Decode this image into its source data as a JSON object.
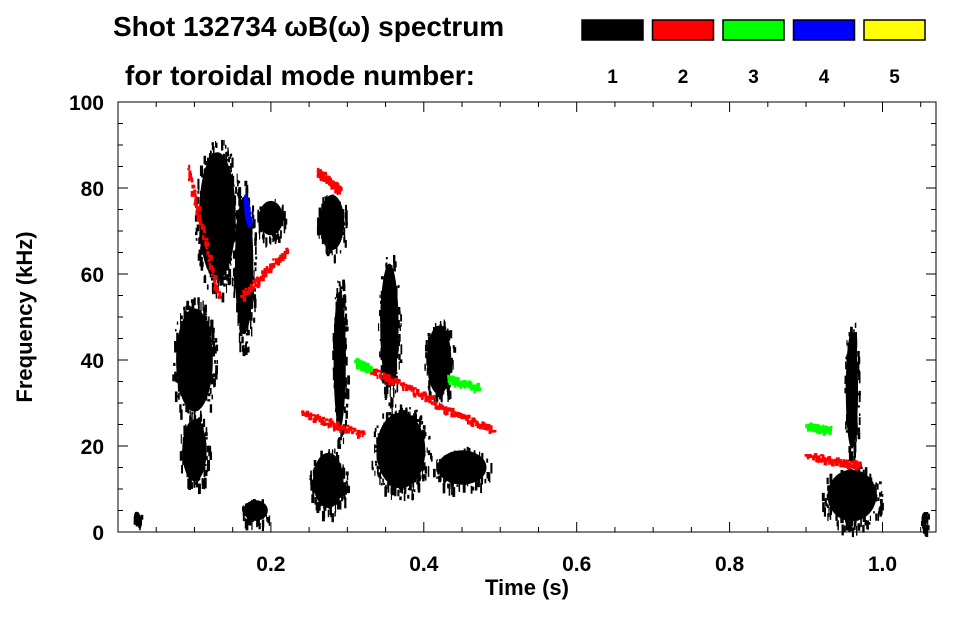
{
  "chart_data": {
    "type": "heatmap",
    "title_line1": "Shot 132734 ωB(ω) spectrum",
    "title_line2": "for toroidal mode number:",
    "xlabel": "Time (s)",
    "ylabel": "Frequency (kHz)",
    "xlim": [
      0.0,
      1.07
    ],
    "ylim": [
      0,
      100
    ],
    "x_ticks": [
      {
        "value": 0.2,
        "label": "0.2"
      },
      {
        "value": 0.4,
        "label": "0.4"
      },
      {
        "value": 0.6,
        "label": "0.6"
      },
      {
        "value": 0.8,
        "label": "0.8"
      },
      {
        "value": 1.0,
        "label": "1.0"
      }
    ],
    "y_ticks": [
      {
        "value": 0,
        "label": "0"
      },
      {
        "value": 20,
        "label": "20"
      },
      {
        "value": 40,
        "label": "40"
      },
      {
        "value": 60,
        "label": "60"
      },
      {
        "value": 80,
        "label": "80"
      },
      {
        "value": 100,
        "label": "100"
      }
    ],
    "legend": [
      {
        "mode": "1",
        "color": "#000000"
      },
      {
        "mode": "2",
        "color": "#ff0000"
      },
      {
        "mode": "3",
        "color": "#00ff00"
      },
      {
        "mode": "4",
        "color": "#0000ff"
      },
      {
        "mode": "5",
        "color": "#ffff00"
      }
    ],
    "regions": [
      {
        "mode": 1,
        "kind": "blob",
        "t0": 0.07,
        "t1": 0.13,
        "f0": 25,
        "f1": 55
      },
      {
        "mode": 1,
        "kind": "blob",
        "t0": 0.08,
        "t1": 0.12,
        "f0": 10,
        "f1": 28
      },
      {
        "mode": 1,
        "kind": "blob",
        "t0": 0.1,
        "t1": 0.16,
        "f0": 55,
        "f1": 92
      },
      {
        "mode": 1,
        "kind": "blob",
        "t0": 0.15,
        "t1": 0.18,
        "f0": 42,
        "f1": 82
      },
      {
        "mode": 1,
        "kind": "blob",
        "t0": 0.16,
        "t1": 0.2,
        "f0": 2,
        "f1": 8
      },
      {
        "mode": 1,
        "kind": "blob",
        "t0": 0.18,
        "t1": 0.22,
        "f0": 68,
        "f1": 78
      },
      {
        "mode": 1,
        "kind": "blob",
        "t0": 0.25,
        "t1": 0.3,
        "f0": 4,
        "f1": 20
      },
      {
        "mode": 1,
        "kind": "blob",
        "t0": 0.26,
        "t1": 0.3,
        "f0": 64,
        "f1": 80
      },
      {
        "mode": 1,
        "kind": "blob",
        "t0": 0.28,
        "t1": 0.3,
        "f0": 20,
        "f1": 60
      },
      {
        "mode": 1,
        "kind": "blob",
        "t0": 0.33,
        "t1": 0.41,
        "f0": 8,
        "f1": 30
      },
      {
        "mode": 1,
        "kind": "blob",
        "t0": 0.34,
        "t1": 0.37,
        "f0": 30,
        "f1": 66
      },
      {
        "mode": 1,
        "kind": "blob",
        "t0": 0.4,
        "t1": 0.44,
        "f0": 30,
        "f1": 50
      },
      {
        "mode": 1,
        "kind": "blob",
        "t0": 0.41,
        "t1": 0.49,
        "f0": 10,
        "f1": 20
      },
      {
        "mode": 1,
        "kind": "blob",
        "t0": 0.92,
        "t1": 1.0,
        "f0": 1,
        "f1": 16
      },
      {
        "mode": 1,
        "kind": "blob",
        "t0": 0.95,
        "t1": 0.97,
        "f0": 16,
        "f1": 50
      },
      {
        "mode": 1,
        "kind": "blob",
        "t0": 0.02,
        "t1": 0.03,
        "f0": 2,
        "f1": 5
      },
      {
        "mode": 1,
        "kind": "blob",
        "t0": 1.05,
        "t1": 1.06,
        "f0": 1,
        "f1": 5
      },
      {
        "mode": 2,
        "kind": "line",
        "t0": 0.09,
        "t1": 0.13,
        "f0": 85,
        "f1": 55
      },
      {
        "mode": 2,
        "kind": "line",
        "t0": 0.16,
        "t1": 0.22,
        "f0": 55,
        "f1": 66
      },
      {
        "mode": 2,
        "kind": "line",
        "t0": 0.26,
        "t1": 0.29,
        "f0": 84,
        "f1": 80
      },
      {
        "mode": 2,
        "kind": "line",
        "t0": 0.24,
        "t1": 0.32,
        "f0": 28,
        "f1": 23
      },
      {
        "mode": 2,
        "kind": "line",
        "t0": 0.33,
        "t1": 0.41,
        "f0": 38,
        "f1": 31
      },
      {
        "mode": 2,
        "kind": "line",
        "t0": 0.41,
        "t1": 0.49,
        "f0": 30,
        "f1": 24
      },
      {
        "mode": 2,
        "kind": "line",
        "t0": 0.9,
        "t1": 0.97,
        "f0": 18,
        "f1": 16
      },
      {
        "mode": 3,
        "kind": "line",
        "t0": 0.43,
        "t1": 0.47,
        "f0": 36,
        "f1": 34
      },
      {
        "mode": 3,
        "kind": "line",
        "t0": 0.9,
        "t1": 0.93,
        "f0": 25,
        "f1": 24
      },
      {
        "mode": 3,
        "kind": "line",
        "t0": 0.31,
        "t1": 0.33,
        "f0": 40,
        "f1": 38
      },
      {
        "mode": 4,
        "kind": "line",
        "t0": 0.165,
        "t1": 0.17,
        "f0": 78,
        "f1": 72
      }
    ]
  }
}
